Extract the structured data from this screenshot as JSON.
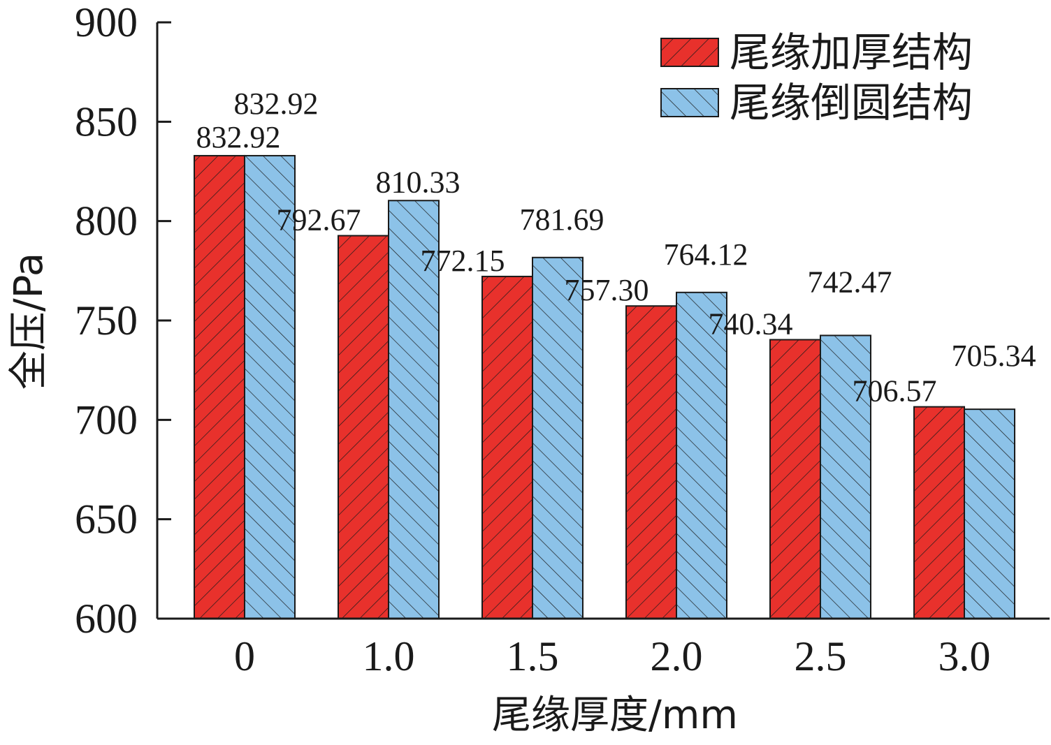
{
  "chart_data": {
    "type": "bar",
    "categories": [
      "0",
      "1.0",
      "1.5",
      "2.0",
      "2.5",
      "3.0"
    ],
    "series": [
      {
        "name": "尾缘加厚结构",
        "values": [
          832.92,
          792.67,
          772.15,
          757.3,
          740.34,
          706.57
        ],
        "color": "#e8312c",
        "hatch": "forward"
      },
      {
        "name": "尾缘倒圆结构",
        "values": [
          832.92,
          810.33,
          781.69,
          764.12,
          742.47,
          705.34
        ],
        "color": "#8cc2e8",
        "hatch": "backward"
      }
    ],
    "data_labels": [
      [
        "832.92",
        "792.67",
        "772.15",
        "757.30",
        "740.34",
        "706.57"
      ],
      [
        "832.92",
        "810.33",
        "781.69",
        "764.12",
        "742.47",
        "705.34"
      ]
    ],
    "xlabel": "尾缘厚度/mm",
    "ylabel": "全压/Pa",
    "ylim": [
      600,
      900
    ],
    "yticks": [
      "600",
      "650",
      "700",
      "750",
      "800",
      "850",
      "900"
    ],
    "grid": false,
    "legend_position": "top-right"
  }
}
